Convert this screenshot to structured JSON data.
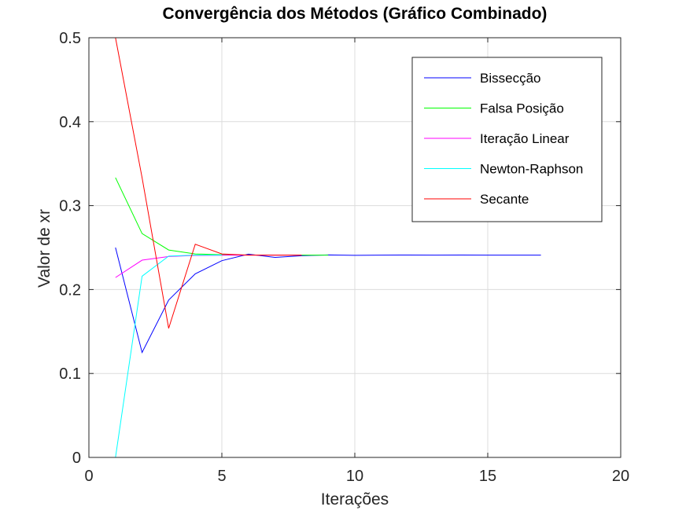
{
  "chart_data": {
    "type": "line",
    "title": "Convergência dos Métodos (Gráfico Combinado)",
    "xlabel": "Iterações",
    "ylabel": "Valor de xr",
    "xlim": [
      0,
      20
    ],
    "ylim": [
      0,
      0.5
    ],
    "xticks": [
      0,
      5,
      10,
      15,
      20
    ],
    "yticks": [
      0,
      0.1,
      0.2,
      0.3,
      0.4,
      0.5
    ],
    "xtick_labels": [
      "0",
      "5",
      "10",
      "15",
      "20"
    ],
    "ytick_labels": [
      "0",
      "0.1",
      "0.2",
      "0.3",
      "0.4",
      "0.5"
    ],
    "grid": true,
    "legend_position": "top-right",
    "series": [
      {
        "name": "Bissecção",
        "color": "#0000ff",
        "x": [
          1,
          2,
          3,
          4,
          5,
          6,
          7,
          8,
          9,
          10,
          11,
          12,
          13,
          14,
          15,
          16,
          17
        ],
        "y": [
          0.25,
          0.125,
          0.1875,
          0.21875,
          0.234375,
          0.2421875,
          0.2382813,
          0.2402344,
          0.2412109,
          0.2407227,
          0.2409668,
          0.2410889,
          0.2410278,
          0.2410583,
          0.2410431,
          0.2410355,
          0.2410393
        ]
      },
      {
        "name": "Falsa Posição",
        "color": "#00ff00",
        "x": [
          1,
          2,
          3,
          4,
          5,
          6,
          7,
          8,
          9
        ],
        "y": [
          0.3333,
          0.2667,
          0.2471,
          0.2424,
          0.2414,
          0.2411,
          0.2411,
          0.241,
          0.241
        ]
      },
      {
        "name": "Iteração Linear",
        "color": "#ff00ff",
        "x": [
          1,
          2,
          3,
          4,
          5,
          6,
          7,
          8
        ],
        "y": [
          0.2143,
          0.235,
          0.2394,
          0.2406,
          0.2409,
          0.241,
          0.241,
          0.241
        ]
      },
      {
        "name": "Newton-Raphson",
        "color": "#00ffff",
        "x": [
          1,
          2,
          3,
          4,
          5
        ],
        "y": [
          0.0,
          0.2159,
          0.2398,
          0.241,
          0.241
        ]
      },
      {
        "name": "Secante",
        "color": "#ff0000",
        "x": [
          1,
          2,
          3,
          4,
          5,
          6,
          7,
          8
        ],
        "y": [
          0.5,
          0.3333,
          0.1538,
          0.254,
          0.2424,
          0.241,
          0.241,
          0.241
        ]
      }
    ]
  }
}
